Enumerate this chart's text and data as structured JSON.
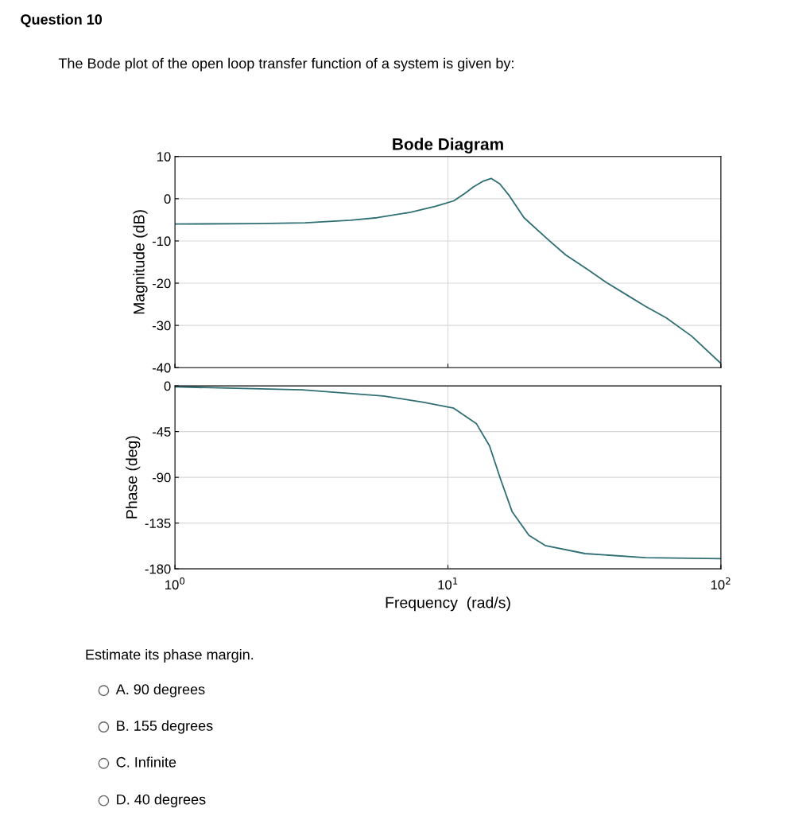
{
  "chart_data": [
    {
      "type": "line",
      "title": "Bode Diagram",
      "ylabel": "Magnitude (dB)",
      "log": "x",
      "xlim": [
        1,
        100
      ],
      "xticks": [
        {
          "value": 1,
          "label": null
        },
        {
          "value": 10,
          "label": null
        },
        {
          "value": 100,
          "label": null
        }
      ],
      "ylim": [
        -40,
        10
      ],
      "yticks": [
        -40,
        -30,
        -20,
        -10,
        0,
        10
      ],
      "grid": true,
      "tick_labels": "y",
      "line_style": "solid",
      "series": [
        {
          "color": "#2f6f73",
          "x": [
            1,
            2,
            3,
            4.4,
            5.5,
            7.3,
            9,
            10.5,
            11.5,
            12.4,
            13.5,
            14.4,
            15.5,
            16.7,
            19,
            23.3,
            27,
            32.4,
            38,
            45,
            53,
            63,
            78,
            100
          ],
          "values": [
            -6,
            -5.9,
            -5.7,
            -5.1,
            -4.5,
            -3.2,
            -1.8,
            -0.5,
            1.2,
            2.8,
            4.2,
            4.8,
            3.5,
            0.9,
            -4.5,
            -9.7,
            -13.3,
            -16.7,
            -19.8,
            -22.7,
            -25.5,
            -28.2,
            -32.5,
            -39
          ]
        }
      ],
      "annotations": [
        "Question 10",
        "The Bode plot of the open loop transfer function of a system is given by:",
        "Estimate its phase margin.",
        "A. 90 degrees",
        "B. 155 degrees",
        "C. Infinite",
        "D. 40 degrees"
      ]
    },
    {
      "type": "line",
      "ylabel": "Phase (deg)",
      "xlabel": "Frequency  (rad/s)",
      "log": "x",
      "xlim": [
        1,
        100
      ],
      "xticks": [
        {
          "value": 1,
          "label": "10$^{0}$"
        },
        {
          "value": 10,
          "label": "10$^{1}$"
        },
        {
          "value": 100,
          "label": "10$^{2}$"
        }
      ],
      "ylim": [
        -180,
        0
      ],
      "yticks": [
        -180,
        -135,
        -90,
        -45,
        0
      ],
      "grid": true,
      "line_style": "solid",
      "series": [
        {
          "color": "#2f6f73",
          "x": [
            1,
            2.93,
            5.8,
            8.1,
            10.5,
            12.7,
            14.2,
            15.6,
            17.2,
            19.8,
            22.7,
            31.8,
            53,
            100
          ],
          "values": [
            -1,
            -4,
            -10,
            -16,
            -22,
            -37,
            -59,
            -92,
            -124,
            -147,
            -157,
            -165,
            -169,
            -170
          ]
        }
      ]
    }
  ]
}
